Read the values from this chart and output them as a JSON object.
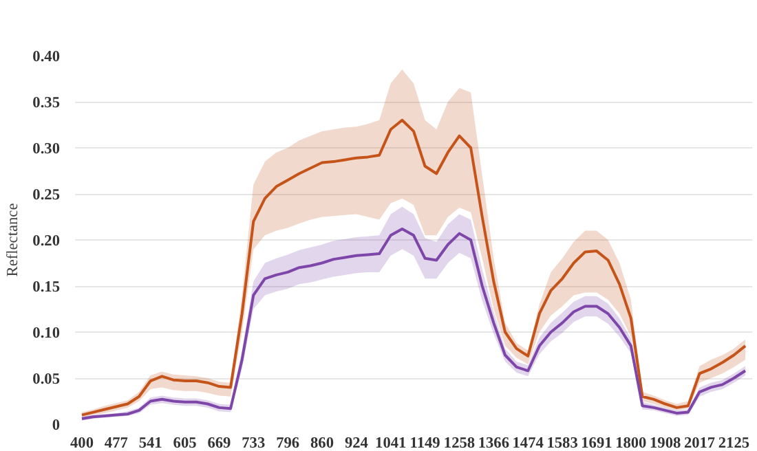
{
  "chart_data": {
    "type": "line",
    "ylabel": "Reflectance",
    "categories": [
      "400",
      null,
      null,
      "477",
      null,
      null,
      "541",
      null,
      null,
      "605",
      null,
      null,
      "669",
      null,
      null,
      "733",
      null,
      null,
      "796",
      null,
      null,
      "860",
      null,
      null,
      "924",
      null,
      null,
      "1041",
      null,
      null,
      "1149",
      null,
      null,
      "1258",
      null,
      null,
      "1366",
      null,
      null,
      "1474",
      null,
      null,
      "1583",
      null,
      null,
      "1691",
      null,
      null,
      "1800",
      null,
      null,
      "1908",
      null,
      null,
      "2017",
      null,
      null,
      "2125",
      null
    ],
    "series": [
      {
        "color": "#c5541a",
        "values": [
          0.01,
          0.013,
          0.016,
          0.019,
          0.022,
          0.03,
          0.047,
          0.052,
          0.048,
          0.047,
          0.047,
          0.045,
          0.041,
          0.04,
          0.12,
          0.22,
          0.245,
          0.258,
          0.265,
          0.272,
          0.278,
          0.284,
          0.285,
          0.287,
          0.289,
          0.29,
          0.292,
          0.32,
          0.33,
          0.318,
          0.28,
          0.272,
          0.295,
          0.313,
          0.3,
          0.225,
          0.155,
          0.1,
          0.082,
          0.074,
          0.12,
          0.145,
          0.158,
          0.175,
          0.187,
          0.188,
          0.178,
          0.152,
          0.115,
          0.03,
          0.027,
          0.022,
          0.018,
          0.02,
          0.055,
          0.06,
          0.067,
          0.075,
          0.085
        ],
        "upper": [
          0.013,
          0.016,
          0.02,
          0.023,
          0.026,
          0.035,
          0.053,
          0.057,
          0.054,
          0.053,
          0.052,
          0.05,
          0.046,
          0.045,
          0.14,
          0.26,
          0.285,
          0.295,
          0.3,
          0.308,
          0.313,
          0.318,
          0.32,
          0.322,
          0.323,
          0.326,
          0.33,
          0.37,
          0.385,
          0.37,
          0.33,
          0.32,
          0.35,
          0.365,
          0.36,
          0.27,
          0.18,
          0.11,
          0.088,
          0.08,
          0.13,
          0.165,
          0.18,
          0.198,
          0.21,
          0.21,
          0.2,
          0.175,
          0.135,
          0.035,
          0.031,
          0.026,
          0.022,
          0.025,
          0.063,
          0.07,
          0.075,
          0.082,
          0.092
        ],
        "lower": [
          0.007,
          0.01,
          0.012,
          0.015,
          0.018,
          0.025,
          0.038,
          0.04,
          0.037,
          0.036,
          0.036,
          0.034,
          0.031,
          0.03,
          0.1,
          0.19,
          0.205,
          0.21,
          0.213,
          0.218,
          0.222,
          0.225,
          0.226,
          0.227,
          0.228,
          0.225,
          0.222,
          0.24,
          0.245,
          0.238,
          0.205,
          0.205,
          0.225,
          0.235,
          0.23,
          0.18,
          0.125,
          0.085,
          0.072,
          0.065,
          0.1,
          0.118,
          0.128,
          0.14,
          0.143,
          0.143,
          0.135,
          0.12,
          0.095,
          0.025,
          0.022,
          0.018,
          0.015,
          0.017,
          0.045,
          0.05,
          0.055,
          0.062,
          0.07
        ]
      },
      {
        "color": "#7d46a8",
        "values": [
          0.006,
          0.008,
          0.009,
          0.01,
          0.011,
          0.015,
          0.025,
          0.027,
          0.025,
          0.024,
          0.024,
          0.022,
          0.018,
          0.017,
          0.07,
          0.14,
          0.158,
          0.162,
          0.165,
          0.17,
          0.172,
          0.175,
          0.179,
          0.181,
          0.183,
          0.184,
          0.185,
          0.205,
          0.212,
          0.205,
          0.18,
          0.178,
          0.195,
          0.207,
          0.2,
          0.15,
          0.11,
          0.075,
          0.062,
          0.058,
          0.085,
          0.1,
          0.11,
          0.122,
          0.128,
          0.128,
          0.12,
          0.105,
          0.085,
          0.02,
          0.018,
          0.015,
          0.012,
          0.013,
          0.035,
          0.04,
          0.043,
          0.05,
          0.058
        ],
        "upper": [
          0.008,
          0.01,
          0.011,
          0.012,
          0.014,
          0.018,
          0.029,
          0.031,
          0.029,
          0.028,
          0.028,
          0.026,
          0.022,
          0.021,
          0.08,
          0.155,
          0.175,
          0.18,
          0.184,
          0.189,
          0.192,
          0.195,
          0.199,
          0.201,
          0.203,
          0.204,
          0.205,
          0.228,
          0.236,
          0.228,
          0.202,
          0.198,
          0.217,
          0.228,
          0.222,
          0.168,
          0.122,
          0.082,
          0.068,
          0.064,
          0.094,
          0.11,
          0.121,
          0.133,
          0.139,
          0.139,
          0.131,
          0.115,
          0.093,
          0.024,
          0.021,
          0.018,
          0.015,
          0.016,
          0.04,
          0.045,
          0.048,
          0.055,
          0.063
        ],
        "lower": [
          0.004,
          0.006,
          0.007,
          0.008,
          0.009,
          0.012,
          0.021,
          0.023,
          0.021,
          0.02,
          0.02,
          0.018,
          0.014,
          0.013,
          0.06,
          0.125,
          0.14,
          0.144,
          0.147,
          0.152,
          0.154,
          0.157,
          0.16,
          0.162,
          0.164,
          0.165,
          0.165,
          0.183,
          0.19,
          0.183,
          0.158,
          0.158,
          0.175,
          0.186,
          0.18,
          0.134,
          0.098,
          0.068,
          0.056,
          0.052,
          0.076,
          0.09,
          0.099,
          0.111,
          0.117,
          0.117,
          0.109,
          0.095,
          0.077,
          0.016,
          0.015,
          0.012,
          0.009,
          0.01,
          0.03,
          0.035,
          0.038,
          0.045,
          0.053
        ]
      }
    ],
    "ylim": [
      0,
      0.4
    ],
    "yticks": [
      0,
      0.05,
      {
        "value": 0.1,
        "label": "0.10"
      },
      0.15,
      {
        "value": 0.2,
        "label": "0.20"
      },
      0.25,
      {
        "value": 0.3,
        "label": "0.30"
      },
      0.35,
      {
        "value": 0.4,
        "label": "0.40"
      }
    ],
    "grid": "y",
    "marker": "none",
    "line_style": "solid"
  }
}
